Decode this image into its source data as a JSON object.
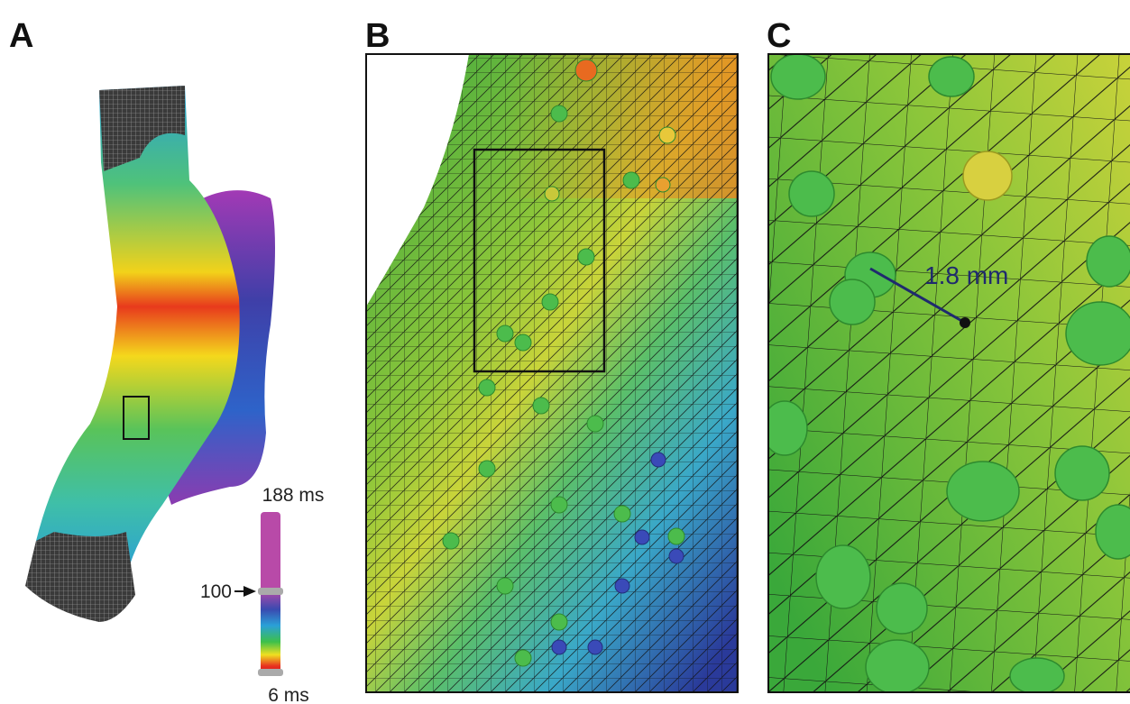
{
  "panels": [
    {
      "label": "A",
      "colorbar": {
        "top_label": "188 ms",
        "mid_label": "100",
        "bottom_label": "6 ms"
      }
    },
    {
      "label": "B"
    },
    {
      "label": "C",
      "annotation": "1.8 mm"
    }
  ]
}
